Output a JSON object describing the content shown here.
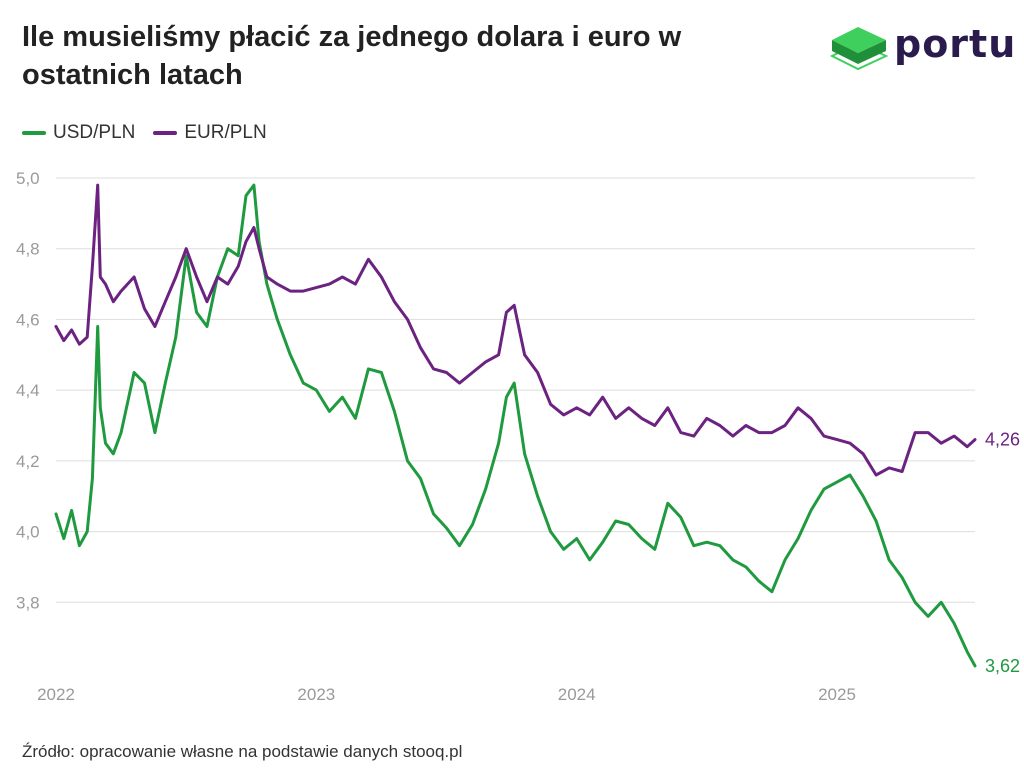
{
  "header": {
    "title": "Ile musieliśmy płacić za jednego dolara i euro w ostatnich latach"
  },
  "logo": {
    "text": "portu",
    "colors": {
      "top": "#3fcf5d",
      "side": "#1f8f3a",
      "outline": "#3fcf5d"
    }
  },
  "legend": {
    "items": [
      "USD/PLN",
      "EUR/PLN"
    ]
  },
  "source": "Źródło: opracowanie własne na podstawie danych stooq.pl",
  "colors": {
    "usd": "#1f9a3f",
    "eur": "#6c2280",
    "grid": "#dddddd",
    "axis_text": "#9a9a9a"
  },
  "chart_data": {
    "type": "line",
    "title": "Ile musieliśmy płacić za jednego dolara i euro w ostatnich latach",
    "xlabel": "",
    "ylabel": "",
    "ylim": [
      3.6,
      5.0
    ],
    "xlim": [
      2022.0,
      2025.53
    ],
    "y_ticks": [
      "5,0",
      "4,8",
      "4,6",
      "4,4",
      "4,2",
      "4,0",
      "3,8"
    ],
    "y_tick_values": [
      5.0,
      4.8,
      4.6,
      4.4,
      4.2,
      4.0,
      3.8
    ],
    "x_ticks": [
      "2022",
      "2023",
      "2024",
      "2025"
    ],
    "x_tick_values": [
      2022,
      2023,
      2024,
      2025
    ],
    "grid": true,
    "legend_position": "top-left",
    "series": [
      {
        "name": "USD/PLN",
        "color": "#1f9a3f",
        "end_label": "3,62",
        "x": [
          2022.0,
          2022.03,
          2022.06,
          2022.09,
          2022.12,
          2022.14,
          2022.16,
          2022.17,
          2022.19,
          2022.22,
          2022.25,
          2022.3,
          2022.34,
          2022.38,
          2022.42,
          2022.46,
          2022.5,
          2022.54,
          2022.58,
          2022.62,
          2022.66,
          2022.7,
          2022.73,
          2022.76,
          2022.78,
          2022.81,
          2022.85,
          2022.9,
          2022.95,
          2023.0,
          2023.05,
          2023.1,
          2023.15,
          2023.2,
          2023.25,
          2023.3,
          2023.35,
          2023.4,
          2023.45,
          2023.5,
          2023.55,
          2023.6,
          2023.65,
          2023.7,
          2023.73,
          2023.76,
          2023.8,
          2023.85,
          2023.9,
          2023.95,
          2024.0,
          2024.05,
          2024.1,
          2024.15,
          2024.2,
          2024.25,
          2024.3,
          2024.35,
          2024.4,
          2024.45,
          2024.5,
          2024.55,
          2024.6,
          2024.65,
          2024.7,
          2024.75,
          2024.8,
          2024.85,
          2024.9,
          2024.95,
          2025.0,
          2025.05,
          2025.1,
          2025.15,
          2025.2,
          2025.25,
          2025.3,
          2025.35,
          2025.4,
          2025.45,
          2025.5,
          2025.53
        ],
        "y": [
          4.05,
          3.98,
          4.06,
          3.96,
          4.0,
          4.15,
          4.58,
          4.35,
          4.25,
          4.22,
          4.28,
          4.45,
          4.42,
          4.28,
          4.42,
          4.55,
          4.78,
          4.62,
          4.58,
          4.72,
          4.8,
          4.78,
          4.95,
          4.98,
          4.82,
          4.7,
          4.6,
          4.5,
          4.42,
          4.4,
          4.34,
          4.38,
          4.32,
          4.46,
          4.45,
          4.34,
          4.2,
          4.15,
          4.05,
          4.01,
          3.96,
          4.02,
          4.12,
          4.25,
          4.38,
          4.42,
          4.22,
          4.1,
          4.0,
          3.95,
          3.98,
          3.92,
          3.97,
          4.03,
          4.02,
          3.98,
          3.95,
          4.08,
          4.04,
          3.96,
          3.97,
          3.96,
          3.92,
          3.9,
          3.86,
          3.83,
          3.92,
          3.98,
          4.06,
          4.12,
          4.14,
          4.16,
          4.1,
          4.03,
          3.92,
          3.87,
          3.8,
          3.76,
          3.8,
          3.74,
          3.66,
          3.62
        ]
      },
      {
        "name": "EUR/PLN",
        "color": "#6c2280",
        "end_label": "4,26",
        "x": [
          2022.0,
          2022.03,
          2022.06,
          2022.09,
          2022.12,
          2022.14,
          2022.16,
          2022.17,
          2022.19,
          2022.22,
          2022.25,
          2022.3,
          2022.34,
          2022.38,
          2022.42,
          2022.46,
          2022.5,
          2022.54,
          2022.58,
          2022.62,
          2022.66,
          2022.7,
          2022.73,
          2022.76,
          2022.78,
          2022.81,
          2022.85,
          2022.9,
          2022.95,
          2023.0,
          2023.05,
          2023.1,
          2023.15,
          2023.2,
          2023.25,
          2023.3,
          2023.35,
          2023.4,
          2023.45,
          2023.5,
          2023.55,
          2023.6,
          2023.65,
          2023.7,
          2023.73,
          2023.76,
          2023.8,
          2023.85,
          2023.9,
          2023.95,
          2024.0,
          2024.05,
          2024.1,
          2024.15,
          2024.2,
          2024.25,
          2024.3,
          2024.35,
          2024.4,
          2024.45,
          2024.5,
          2024.55,
          2024.6,
          2024.65,
          2024.7,
          2024.75,
          2024.8,
          2024.85,
          2024.9,
          2024.95,
          2025.0,
          2025.05,
          2025.1,
          2025.15,
          2025.2,
          2025.25,
          2025.3,
          2025.35,
          2025.4,
          2025.45,
          2025.5,
          2025.53
        ],
        "y": [
          4.58,
          4.54,
          4.57,
          4.53,
          4.55,
          4.75,
          4.98,
          4.72,
          4.7,
          4.65,
          4.68,
          4.72,
          4.63,
          4.58,
          4.65,
          4.72,
          4.8,
          4.72,
          4.65,
          4.72,
          4.7,
          4.75,
          4.82,
          4.86,
          4.8,
          4.72,
          4.7,
          4.68,
          4.68,
          4.69,
          4.7,
          4.72,
          4.7,
          4.77,
          4.72,
          4.65,
          4.6,
          4.52,
          4.46,
          4.45,
          4.42,
          4.45,
          4.48,
          4.5,
          4.62,
          4.64,
          4.5,
          4.45,
          4.36,
          4.33,
          4.35,
          4.33,
          4.38,
          4.32,
          4.35,
          4.32,
          4.3,
          4.35,
          4.28,
          4.27,
          4.32,
          4.3,
          4.27,
          4.3,
          4.28,
          4.28,
          4.3,
          4.35,
          4.32,
          4.27,
          4.26,
          4.25,
          4.22,
          4.16,
          4.18,
          4.17,
          4.28,
          4.28,
          4.25,
          4.27,
          4.24,
          4.26
        ]
      }
    ]
  }
}
